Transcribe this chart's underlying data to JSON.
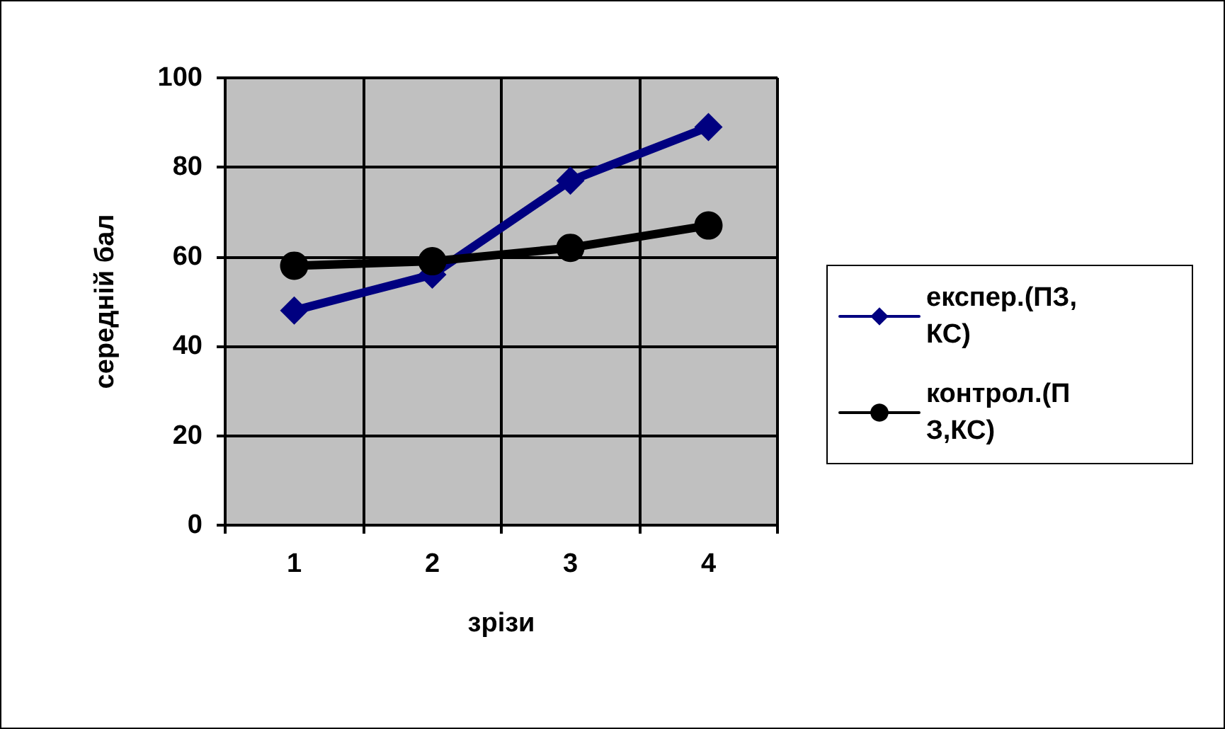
{
  "chart_data": {
    "type": "line",
    "xlabel": "зрізи",
    "ylabel": "середній бал",
    "categories": [
      "1",
      "2",
      "3",
      "4"
    ],
    "series": [
      {
        "name": "експер.(ПЗ,КС)",
        "color": "#000080",
        "marker": "diamond",
        "values": [
          48,
          56,
          77,
          89
        ]
      },
      {
        "name": "контрол.(ПЗ,КС)",
        "color": "#000000",
        "marker": "circle",
        "values": [
          58,
          59,
          62,
          67
        ]
      }
    ],
    "ylim": [
      0,
      100
    ],
    "yticks": [
      0,
      20,
      40,
      60,
      80,
      100
    ],
    "grid": true,
    "legend": "right"
  }
}
